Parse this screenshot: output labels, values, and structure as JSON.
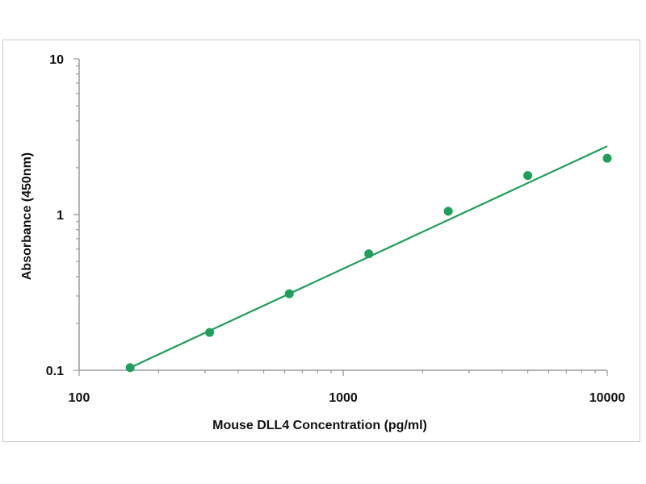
{
  "chart_data": {
    "type": "scatter",
    "title": "",
    "xlabel": "Mouse DLL4 Concentration (pg/ml)",
    "ylabel": "Absorbance (450nm)",
    "x_scale": "log",
    "y_scale": "log",
    "xlim": [
      100,
      10000
    ],
    "ylim": [
      0.1,
      10
    ],
    "x_ticks": [
      "100",
      "1000",
      "10000"
    ],
    "y_ticks": [
      "0.1",
      "1",
      "10"
    ],
    "grid": false,
    "legend": "none",
    "series": [
      {
        "x": [
          156,
          312,
          625,
          1250,
          2500,
          5000,
          10000
        ],
        "y": [
          0.104,
          0.175,
          0.31,
          0.56,
          1.05,
          1.78,
          2.3
        ]
      }
    ],
    "fit_line": {
      "x": [
        156,
        10000
      ],
      "y": [
        0.104,
        2.75
      ]
    },
    "colors": {
      "series": "#1e9f5a",
      "axis": "#9a9a9a",
      "text": "#111111"
    }
  }
}
